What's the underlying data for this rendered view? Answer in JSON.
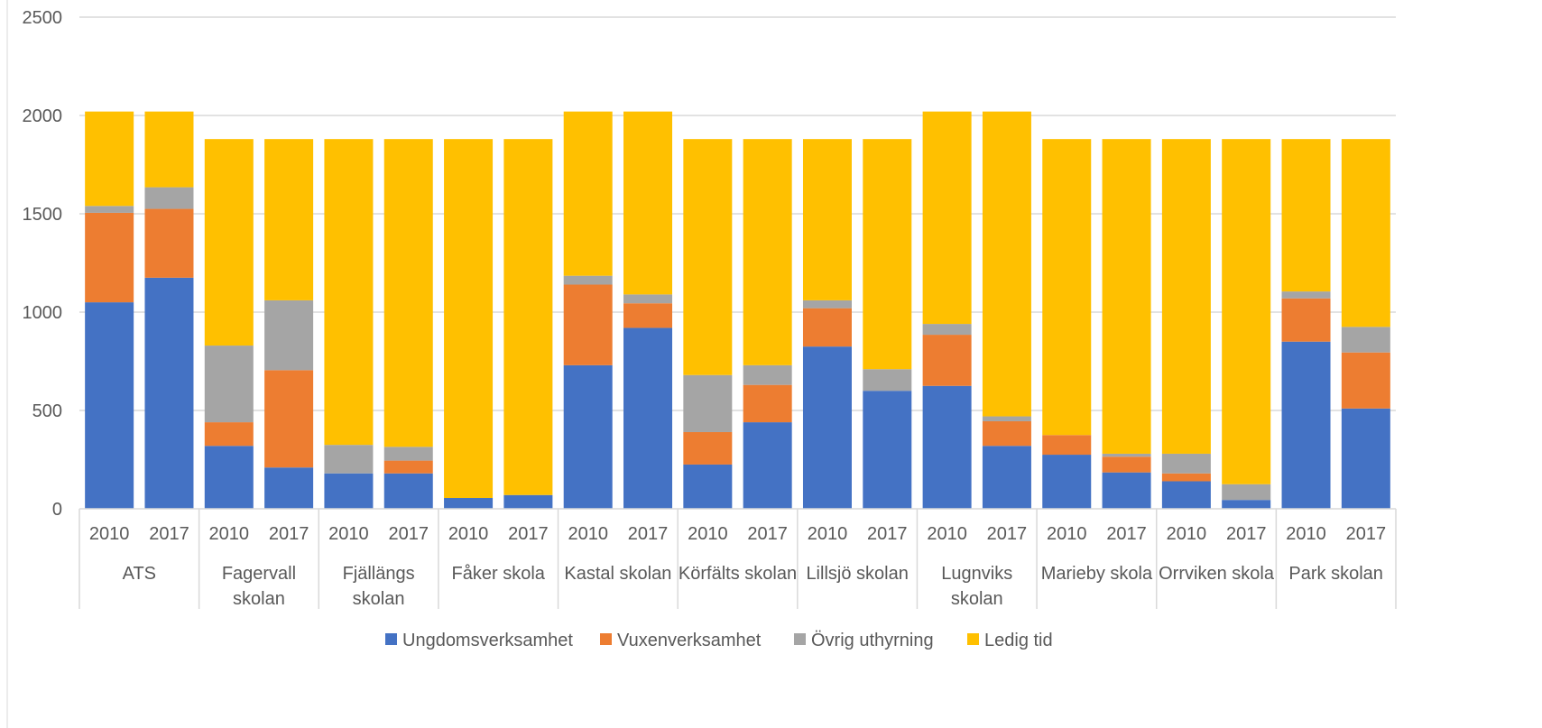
{
  "chart_data": {
    "type": "bar",
    "stacked": true,
    "title": "",
    "xlabel": "",
    "ylabel": "",
    "ylim": [
      0,
      2500
    ],
    "yticks": [
      0,
      500,
      1000,
      1500,
      2000,
      2500
    ],
    "grid": true,
    "legend_position": "bottom",
    "groups": [
      {
        "name": "ATS",
        "label_lines": [
          "ATS"
        ]
      },
      {
        "name": "Fagervall skolan",
        "label_lines": [
          "Fagervall",
          "skolan"
        ]
      },
      {
        "name": "Fjällängs skolan",
        "label_lines": [
          "Fjällängs",
          "skolan"
        ]
      },
      {
        "name": "Fåker skola",
        "label_lines": [
          "Fåker skola"
        ]
      },
      {
        "name": "Kastal skolan",
        "label_lines": [
          "Kastal skolan"
        ]
      },
      {
        "name": "Körfälts skolan",
        "label_lines": [
          "Körfälts skolan"
        ]
      },
      {
        "name": "Lillsjö skolan",
        "label_lines": [
          "Lillsjö skolan"
        ]
      },
      {
        "name": "Lugnviks skolan",
        "label_lines": [
          "Lugnviks",
          "skolan"
        ]
      },
      {
        "name": "Marieby skola",
        "label_lines": [
          "Marieby skola"
        ]
      },
      {
        "name": "Orrviken skola",
        "label_lines": [
          "Orrviken skola"
        ]
      },
      {
        "name": "Park skolan",
        "label_lines": [
          "Park skolan"
        ]
      }
    ],
    "years": [
      "2010",
      "2017"
    ],
    "series": [
      {
        "name": "Ungdomsverksamhet",
        "color": "#4472C4",
        "values": [
          1050,
          1175,
          320,
          210,
          180,
          180,
          55,
          70,
          730,
          920,
          225,
          440,
          825,
          600,
          625,
          320,
          275,
          185,
          140,
          45,
          850,
          510
        ]
      },
      {
        "name": "Vuxenverksamhet",
        "color": "#ED7D31",
        "values": [
          455,
          350,
          120,
          495,
          0,
          65,
          0,
          0,
          410,
          125,
          165,
          190,
          195,
          0,
          260,
          125,
          100,
          80,
          40,
          0,
          220,
          285
        ]
      },
      {
        "name": "Övrig uthyrning",
        "color": "#A5A5A5",
        "values": [
          35,
          110,
          390,
          355,
          145,
          70,
          0,
          0,
          45,
          45,
          290,
          100,
          40,
          110,
          55,
          25,
          0,
          15,
          100,
          80,
          35,
          130
        ]
      },
      {
        "name": "Ledig tid",
        "color": "#FFC000",
        "values": [
          480,
          385,
          1050,
          820,
          1555,
          1565,
          1825,
          1810,
          835,
          930,
          1200,
          1150,
          820,
          1170,
          1080,
          1550,
          1505,
          1600,
          1600,
          1755,
          775,
          955
        ]
      }
    ]
  }
}
